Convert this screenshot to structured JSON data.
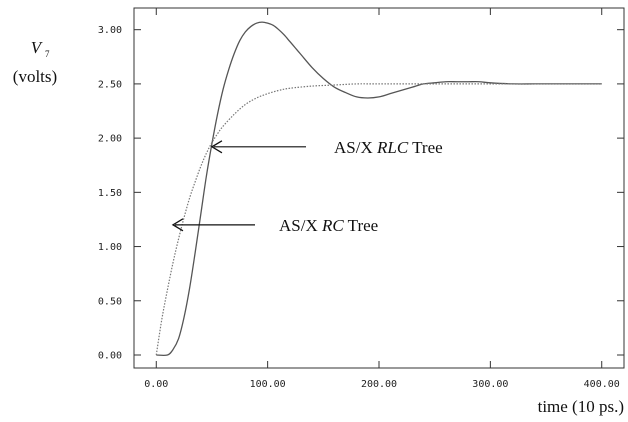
{
  "chart_data": {
    "type": "line",
    "title": "",
    "ylabel": {
      "symbol": "V",
      "subscript": "7",
      "unit": "(volts)"
    },
    "xlabel": "time (10 ps.)",
    "xlim": [
      -20,
      420
    ],
    "ylim": [
      -0.12,
      3.2
    ],
    "x_ticks": [
      0,
      100,
      200,
      300,
      400
    ],
    "x_tick_labels": [
      "0.00",
      "100.00",
      "200.00",
      "300.00",
      "400.00"
    ],
    "y_ticks": [
      0,
      0.5,
      1.0,
      1.5,
      2.0,
      2.5,
      3.0
    ],
    "y_tick_labels": [
      "0.00",
      "0.50",
      "1.00",
      "1.50",
      "2.00",
      "2.50",
      "3.00"
    ],
    "grid": false,
    "series": [
      {
        "name": "AS/X RLC Tree",
        "style": "solid",
        "color": "#555555",
        "x": [
          0,
          10,
          15,
          20,
          25,
          30,
          35,
          40,
          45,
          50,
          55,
          60,
          65,
          70,
          75,
          80,
          85,
          90,
          95,
          100,
          105,
          110,
          115,
          120,
          125,
          130,
          140,
          150,
          160,
          170,
          180,
          190,
          200,
          210,
          220,
          230,
          240,
          250,
          260,
          270,
          280,
          290,
          300,
          320,
          340,
          360,
          380,
          400
        ],
        "y": [
          0.0,
          0.0,
          0.05,
          0.15,
          0.35,
          0.62,
          0.95,
          1.3,
          1.65,
          1.95,
          2.22,
          2.45,
          2.63,
          2.78,
          2.9,
          2.98,
          3.03,
          3.06,
          3.07,
          3.06,
          3.04,
          3.0,
          2.95,
          2.89,
          2.83,
          2.77,
          2.65,
          2.55,
          2.47,
          2.42,
          2.38,
          2.37,
          2.38,
          2.41,
          2.44,
          2.47,
          2.5,
          2.51,
          2.52,
          2.52,
          2.52,
          2.52,
          2.51,
          2.5,
          2.5,
          2.5,
          2.5,
          2.5
        ]
      },
      {
        "name": "AS/X RC Tree",
        "style": "dotted",
        "color": "#777777",
        "x": [
          0,
          5,
          10,
          15,
          20,
          25,
          30,
          35,
          40,
          45,
          50,
          55,
          60,
          70,
          80,
          90,
          100,
          110,
          120,
          140,
          160,
          180,
          200,
          250,
          300,
          350,
          400
        ],
        "y": [
          0.0,
          0.33,
          0.6,
          0.85,
          1.07,
          1.27,
          1.45,
          1.6,
          1.74,
          1.86,
          1.96,
          2.04,
          2.11,
          2.22,
          2.31,
          2.37,
          2.41,
          2.44,
          2.46,
          2.48,
          2.49,
          2.5,
          2.5,
          2.5,
          2.5,
          2.5,
          2.5
        ]
      }
    ],
    "annotations": [
      {
        "id": "rlc",
        "text_plain": "AS/X ",
        "text_italic": "RLC",
        "text_after": " Tree",
        "arrow_to": [
          50,
          1.92
        ],
        "arrow_from": [
          134,
          1.92
        ]
      },
      {
        "id": "rc",
        "text_plain": "AS/X ",
        "text_italic": "RC",
        "text_after": " Tree",
        "arrow_to": [
          15,
          1.2
        ],
        "arrow_from": [
          95,
          1.2
        ]
      }
    ]
  }
}
